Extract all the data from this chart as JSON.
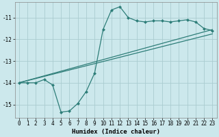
{
  "xlabel": "Humidex (Indice chaleur)",
  "bg_color": "#cce8ec",
  "grid_color": "#aaccd0",
  "line_color": "#2d7d78",
  "xlim": [
    -0.5,
    23.5
  ],
  "ylim": [
    -15.6,
    -10.3
  ],
  "yticks": [
    -15,
    -14,
    -13,
    -12,
    -11
  ],
  "xticks": [
    0,
    1,
    2,
    3,
    4,
    5,
    6,
    7,
    8,
    9,
    10,
    11,
    12,
    13,
    14,
    15,
    16,
    17,
    18,
    19,
    20,
    21,
    22,
    23
  ],
  "line1_x": [
    0,
    1,
    2,
    3,
    4,
    5,
    6,
    7,
    8,
    9,
    10,
    11,
    12,
    13,
    14,
    15,
    16,
    17,
    18,
    19,
    20,
    21,
    22,
    23
  ],
  "line1_y": [
    -14.0,
    -14.0,
    -14.0,
    -13.85,
    -14.1,
    -15.35,
    -15.3,
    -14.95,
    -14.4,
    -13.55,
    -11.55,
    -10.65,
    -10.5,
    -11.0,
    -11.15,
    -11.2,
    -11.15,
    -11.15,
    -11.2,
    -11.15,
    -11.1,
    -11.2,
    -11.5,
    -11.6
  ],
  "line2_y": [
    -14.0,
    -11.55
  ],
  "line3_y": [
    -14.0,
    -11.75
  ],
  "markersize": 2.5,
  "linewidth": 0.9,
  "tick_fontsize": 5.5,
  "axis_fontsize": 6.5
}
